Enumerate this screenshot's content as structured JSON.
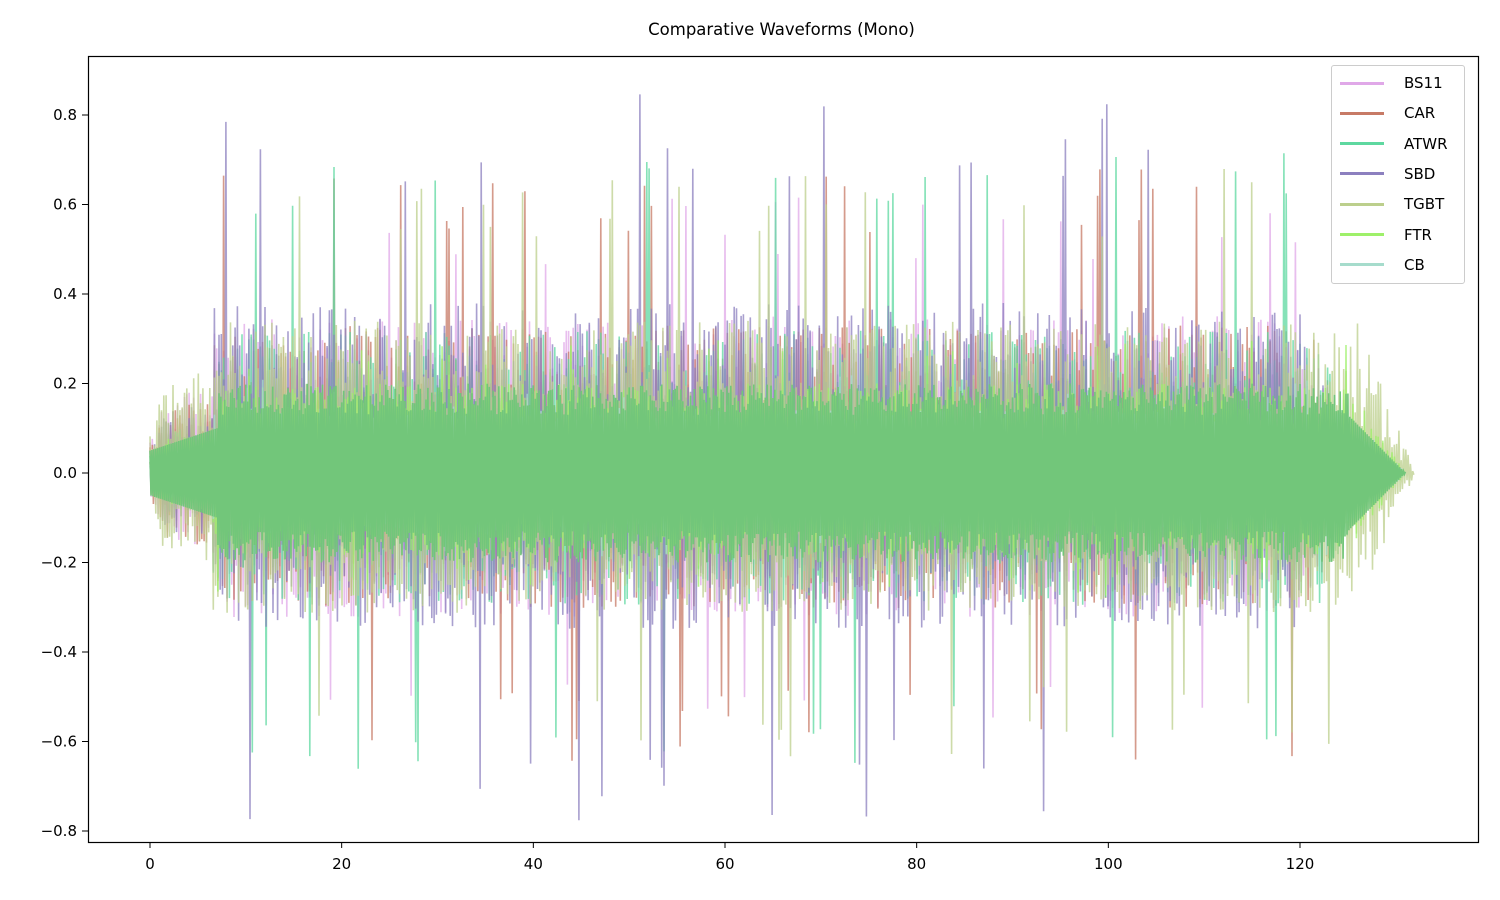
{
  "chart_data": {
    "type": "line",
    "title": "Comparative Waveforms (Mono)",
    "xlabel": "",
    "ylabel": "",
    "xlim": [
      -8,
      138
    ],
    "ylim": [
      -0.82,
      0.93
    ],
    "x_ticks": [
      0,
      20,
      40,
      60,
      80,
      100,
      120
    ],
    "x_tick_labels": [
      "0",
      "20",
      "40",
      "60",
      "80",
      "100",
      "120"
    ],
    "y_ticks": [
      -0.8,
      -0.6,
      -0.4,
      -0.2,
      0.0,
      0.2,
      0.4,
      0.6,
      0.8
    ],
    "y_tick_labels": [
      "−0.8",
      "−0.6",
      "−0.4",
      "−0.2",
      "0.0",
      "0.2",
      "0.4",
      "0.6",
      "0.8"
    ],
    "grid": false,
    "legend_position": "upper right",
    "series": [
      {
        "name": "BS11",
        "color": "#e0a8e8",
        "duration": 126,
        "intro_peak": 0.18,
        "peak": 0.62,
        "typical": 0.35,
        "seed": 11
      },
      {
        "name": "CAR",
        "color": "#c77a66",
        "duration": 127,
        "intro_peak": 0.18,
        "peak": 0.7,
        "typical": 0.33,
        "seed": 23
      },
      {
        "name": "ATWR",
        "color": "#5ed8a0",
        "duration": 128,
        "intro_peak": 0.1,
        "peak": 0.73,
        "typical": 0.32,
        "seed": 37
      },
      {
        "name": "SBD",
        "color": "#8c80bf",
        "duration": 126,
        "intro_peak": 0.15,
        "peak": 0.85,
        "typical": 0.38,
        "seed": 51
      },
      {
        "name": "TGBT",
        "color": "#bccf8c",
        "duration": 132,
        "intro_peak": 0.23,
        "peak": 0.69,
        "typical": 0.34,
        "seed": 67
      },
      {
        "name": "FTR",
        "color": "#9ef06a",
        "duration": 131,
        "intro_peak": 0.08,
        "peak": 0.3,
        "typical": 0.2,
        "seed": 79
      },
      {
        "name": "CB",
        "color": "#a6dccc",
        "duration": 131,
        "intro_peak": 0.06,
        "peak": 0.22,
        "typical": 0.15,
        "seed": 83
      }
    ],
    "annotations": {
      "signal_start_x": 0,
      "loud_section_start_x": 7,
      "signal_end_x": 132,
      "core_overlap_color": "#72c67a",
      "max_observed": 0.85,
      "min_observed": -0.74
    }
  }
}
